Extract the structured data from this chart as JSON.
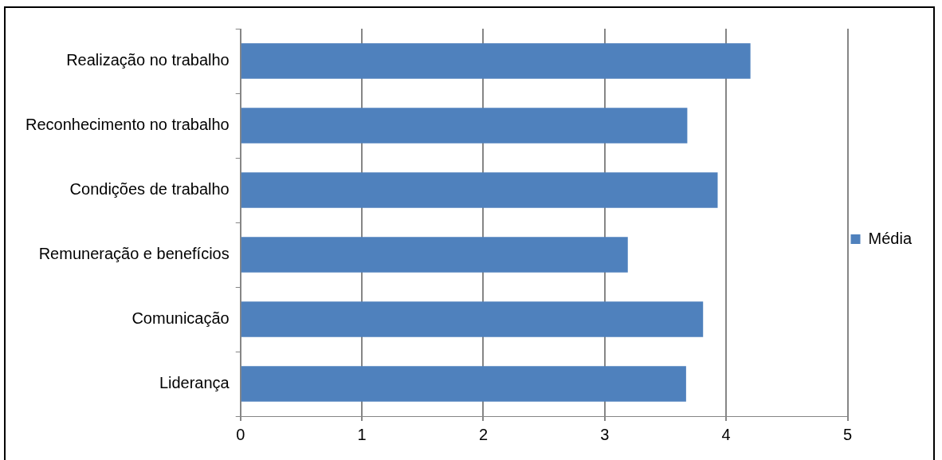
{
  "chart_data": {
    "type": "bar",
    "orientation": "horizontal",
    "categories": [
      "Realização no trabalho",
      "Reconhecimento no trabalho",
      "Condições de trabalho",
      "Remuneração e benefícios",
      "Comunicação",
      "Liderança"
    ],
    "series": [
      {
        "name": "Média",
        "color": "#4f81bd",
        "values": [
          4.2,
          3.68,
          3.93,
          3.19,
          3.81,
          3.67
        ]
      }
    ],
    "xlim": [
      0,
      5
    ],
    "xticks": [
      0,
      1,
      2,
      3,
      4,
      5
    ],
    "grid": "x",
    "legend": "right"
  }
}
